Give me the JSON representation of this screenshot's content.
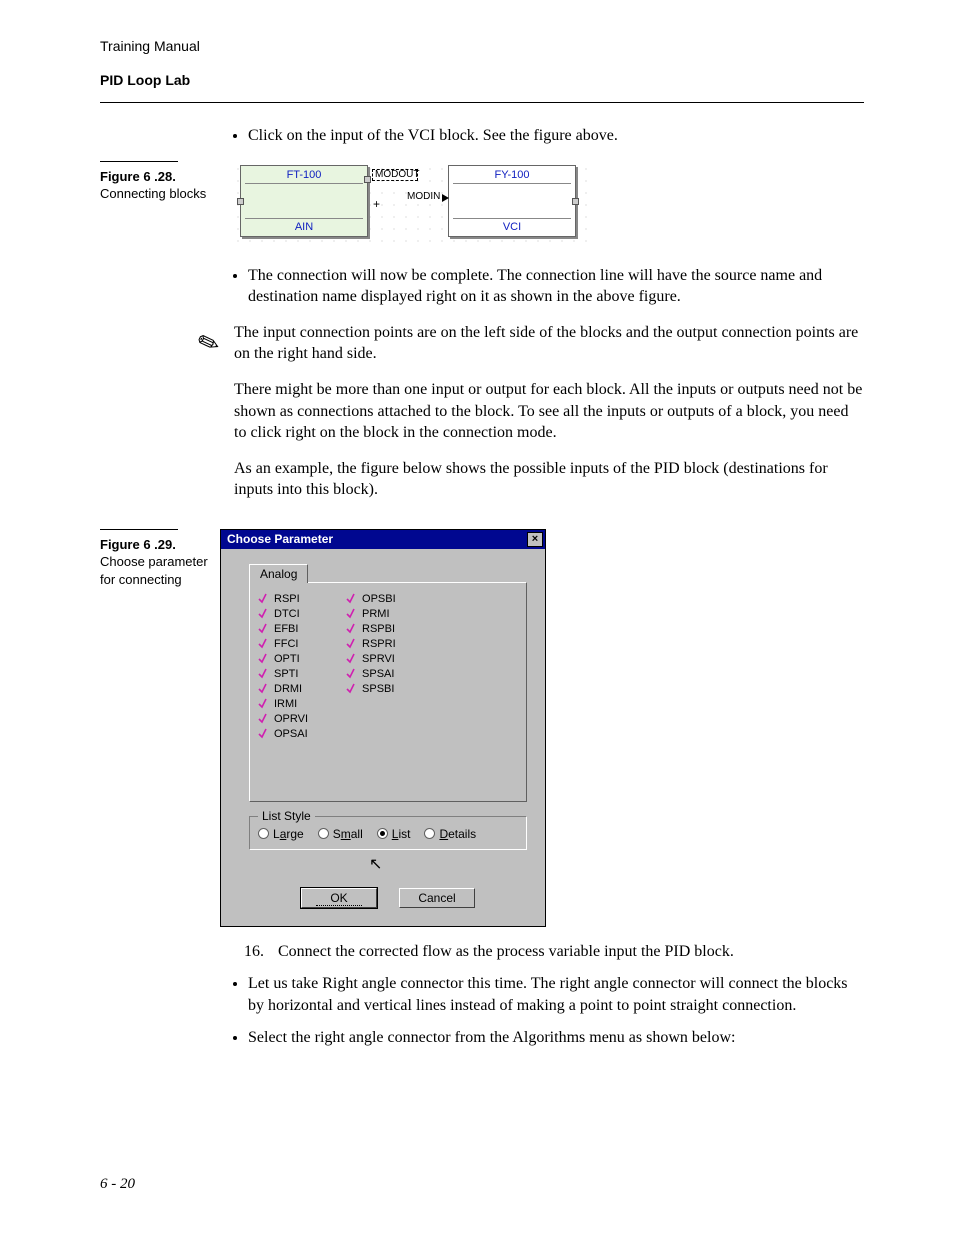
{
  "header": {
    "line1": "Training Manual",
    "line2": "PID Loop Lab"
  },
  "bullets_top": [
    "Click on the input of the VCI block. See the figure above."
  ],
  "figure628": {
    "label_num": "Figure 6 .28.",
    "label_caption": "Connecting blocks",
    "block_left_title": "FT-100",
    "block_left_foot": "AIN",
    "block_right_title": "FY-100",
    "block_right_foot": "VCI",
    "conn_out": "MODOUT",
    "conn_in": "MODIN",
    "plus": "+"
  },
  "bullets_mid": [
    "The connection will now be complete. The connection line will have the source name and destination name displayed right on it as shown in the above figure."
  ],
  "note_paras": [
    "The input connection points are on the left side of the blocks and the output connection points are on the right hand side.",
    "There might be more than one input or output for each block. All the inputs or outputs need not be shown as connections attached to the block. To see all the inputs or outputs of a block, you need to click right on the block in the connection mode.",
    "As an example, the figure below shows the possible inputs of the PID block (destinations for inputs into this block)."
  ],
  "figure629": {
    "label_num": "Figure 6 .29.",
    "label_caption": "Choose parameter for connecting",
    "title": "Choose Parameter",
    "tab": "Analog",
    "col1": [
      "RSPI",
      "DTCI",
      "EFBI",
      "FFCI",
      "OPTI",
      "SPTI",
      "DRMI",
      "IRMI",
      "OPRVI",
      "OPSAI"
    ],
    "col2": [
      "OPSBI",
      "PRMI",
      "RSPBI",
      "RSPRI",
      "SPRVI",
      "SPSAI",
      "SPSBI"
    ],
    "group_label": "List Style",
    "radios": [
      {
        "label_pre": "L",
        "label_u": "a",
        "label_post": "rge",
        "selected": false
      },
      {
        "label_pre": "S",
        "label_u": "m",
        "label_post": "all",
        "selected": false
      },
      {
        "label_pre": "",
        "label_u": "L",
        "label_post": "ist",
        "selected": true
      },
      {
        "label_pre": "",
        "label_u": "D",
        "label_post": "etails",
        "selected": false
      }
    ],
    "btn_ok": "OK",
    "btn_cancel": "Cancel"
  },
  "step16": {
    "number": "16.",
    "text": "Connect the corrected flow as the process variable input the PID block."
  },
  "bullets_bottom": [
    "Let us take Right angle connector this time. The right angle connector will connect the blocks by horizontal and vertical lines instead of making a point to point straight connection.",
    "Select the right angle connector from the Algorithms menu as shown below:"
  ],
  "footer": "6 - 20",
  "style": {
    "title_color": "#000790",
    "block_label_color": "#1020c0",
    "check_color": "#d020b0"
  }
}
